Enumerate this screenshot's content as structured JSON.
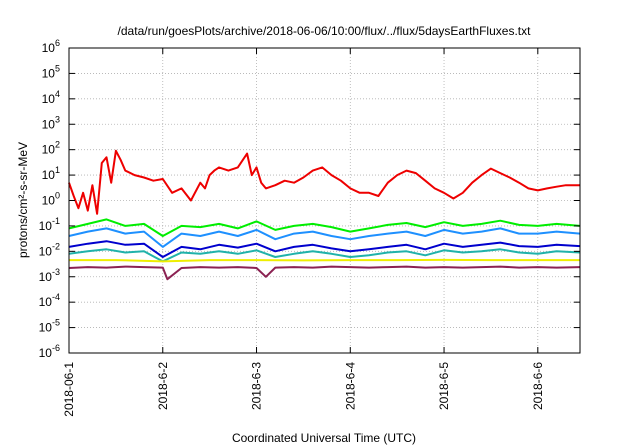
{
  "chart_data": {
    "type": "line",
    "title": "/data/run/goesPlots/archive/2018-06-06/10:00/flux/../flux/5daysEarthFluxes.txt",
    "xlabel": "Coordinated Universal Time (UTC)",
    "ylabel": "protons/cm²-s-sr-MeV",
    "y_scale": "log",
    "ylim": [
      1e-06,
      1000000.0
    ],
    "xlim": [
      0,
      5.45
    ],
    "x_origin_date": "2018-06-01",
    "x_ticks": [
      {
        "value": 0,
        "label": "2018-06-1"
      },
      {
        "value": 1,
        "label": "2018-6-2"
      },
      {
        "value": 2,
        "label": "2018-6-3"
      },
      {
        "value": 3,
        "label": "2018-6-4"
      },
      {
        "value": 4,
        "label": "2018-6-5"
      },
      {
        "value": 5,
        "label": "2018-6-6"
      }
    ],
    "y_ticks": [
      {
        "value": 1000000.0,
        "base": "10",
        "exp": "6"
      },
      {
        "value": 100000.0,
        "base": "10",
        "exp": "5"
      },
      {
        "value": 10000.0,
        "base": "10",
        "exp": "4"
      },
      {
        "value": 1000.0,
        "base": "10",
        "exp": "3"
      },
      {
        "value": 100.0,
        "base": "10",
        "exp": "2"
      },
      {
        "value": 10.0,
        "base": "10",
        "exp": "1"
      },
      {
        "value": 1.0,
        "base": "10",
        "exp": "0"
      },
      {
        "value": 0.1,
        "base": "10",
        "exp": "-1"
      },
      {
        "value": 0.01,
        "base": "10",
        "exp": "-2"
      },
      {
        "value": 0.001,
        "base": "10",
        "exp": "-3"
      },
      {
        "value": 0.0001,
        "base": "10",
        "exp": "-4"
      },
      {
        "value": 1e-05,
        "base": "10",
        "exp": "-5"
      },
      {
        "value": 1e-06,
        "base": "10",
        "exp": "-6"
      }
    ],
    "grid": true,
    "series": [
      {
        "color": "#ee0000",
        "x": [
          0,
          0.05,
          0.1,
          0.15,
          0.2,
          0.25,
          0.3,
          0.35,
          0.4,
          0.45,
          0.5,
          0.55,
          0.6,
          0.7,
          0.8,
          0.9,
          1.0,
          1.1,
          1.2,
          1.3,
          1.4,
          1.45,
          1.5,
          1.55,
          1.6,
          1.7,
          1.8,
          1.9,
          1.95,
          2.0,
          2.05,
          2.1,
          2.2,
          2.3,
          2.4,
          2.5,
          2.6,
          2.7,
          2.8,
          2.9,
          3.0,
          3.1,
          3.2,
          3.3,
          3.4,
          3.5,
          3.6,
          3.7,
          3.8,
          3.9,
          4.0,
          4.1,
          4.2,
          4.3,
          4.4,
          4.5,
          4.6,
          4.7,
          4.8,
          4.9,
          5.0,
          5.1,
          5.2,
          5.3,
          5.45
        ],
        "values": [
          5,
          1.5,
          0.5,
          2,
          0.4,
          4,
          0.3,
          30,
          50,
          5,
          90,
          40,
          15,
          10,
          8,
          6,
          7,
          2,
          3,
          1,
          5,
          3,
          10,
          15,
          20,
          15,
          20,
          70,
          10,
          20,
          5,
          3,
          4,
          6,
          5,
          8,
          15,
          20,
          10,
          6,
          3,
          2,
          2,
          1.5,
          5,
          10,
          15,
          12,
          6,
          3,
          2,
          1.2,
          2,
          5,
          10,
          18,
          12,
          8,
          5,
          3,
          2.5,
          3,
          3.5,
          4,
          4
        ]
      },
      {
        "color": "#00ee00",
        "x": [
          0,
          0.2,
          0.4,
          0.6,
          0.8,
          1.0,
          1.2,
          1.4,
          1.6,
          1.8,
          2.0,
          2.2,
          2.4,
          2.6,
          2.8,
          3.0,
          3.2,
          3.4,
          3.6,
          3.8,
          4.0,
          4.2,
          4.4,
          4.6,
          4.8,
          5.0,
          5.2,
          5.45
        ],
        "values": [
          0.08,
          0.12,
          0.18,
          0.1,
          0.12,
          0.04,
          0.1,
          0.09,
          0.12,
          0.08,
          0.15,
          0.07,
          0.1,
          0.12,
          0.09,
          0.06,
          0.08,
          0.11,
          0.13,
          0.09,
          0.14,
          0.1,
          0.12,
          0.16,
          0.11,
          0.1,
          0.12,
          0.1
        ]
      },
      {
        "color": "#1e90ff",
        "x": [
          0,
          0.2,
          0.4,
          0.6,
          0.8,
          1.0,
          1.2,
          1.4,
          1.6,
          1.8,
          2.0,
          2.2,
          2.4,
          2.6,
          2.8,
          3.0,
          3.2,
          3.4,
          3.6,
          3.8,
          4.0,
          4.2,
          4.4,
          4.6,
          4.8,
          5.0,
          5.2,
          5.45
        ],
        "values": [
          0.04,
          0.06,
          0.08,
          0.05,
          0.06,
          0.015,
          0.05,
          0.04,
          0.06,
          0.04,
          0.07,
          0.03,
          0.05,
          0.06,
          0.04,
          0.03,
          0.04,
          0.05,
          0.06,
          0.04,
          0.07,
          0.05,
          0.06,
          0.08,
          0.05,
          0.05,
          0.06,
          0.05
        ]
      },
      {
        "color": "#0000cd",
        "x": [
          0,
          0.2,
          0.4,
          0.6,
          0.8,
          1.0,
          1.2,
          1.4,
          1.6,
          1.8,
          2.0,
          2.2,
          2.4,
          2.6,
          2.8,
          3.0,
          3.2,
          3.4,
          3.6,
          3.8,
          4.0,
          4.2,
          4.4,
          4.6,
          4.8,
          5.0,
          5.2,
          5.45
        ],
        "values": [
          0.015,
          0.02,
          0.025,
          0.018,
          0.02,
          0.006,
          0.015,
          0.012,
          0.018,
          0.014,
          0.02,
          0.01,
          0.015,
          0.018,
          0.013,
          0.01,
          0.012,
          0.015,
          0.018,
          0.012,
          0.02,
          0.015,
          0.018,
          0.022,
          0.016,
          0.015,
          0.018,
          0.016
        ]
      },
      {
        "color": "#20b2aa",
        "x": [
          0,
          0.2,
          0.4,
          0.6,
          0.8,
          1.0,
          1.2,
          1.4,
          1.6,
          1.8,
          2.0,
          2.2,
          2.4,
          2.6,
          2.8,
          3.0,
          3.2,
          3.4,
          3.6,
          3.8,
          4.0,
          4.2,
          4.4,
          4.6,
          4.8,
          5.0,
          5.2,
          5.45
        ],
        "values": [
          0.008,
          0.01,
          0.012,
          0.009,
          0.01,
          0.004,
          0.009,
          0.008,
          0.01,
          0.008,
          0.011,
          0.006,
          0.008,
          0.01,
          0.008,
          0.006,
          0.007,
          0.009,
          0.01,
          0.007,
          0.011,
          0.009,
          0.01,
          0.012,
          0.009,
          0.008,
          0.01,
          0.009
        ]
      },
      {
        "color": "#eeee00",
        "x": [
          0,
          0.5,
          1.0,
          1.5,
          2.0,
          2.5,
          3.0,
          3.5,
          4.0,
          4.5,
          5.0,
          5.45
        ],
        "values": [
          0.0045,
          0.0045,
          0.004,
          0.0045,
          0.0045,
          0.0044,
          0.0045,
          0.0045,
          0.0046,
          0.0045,
          0.0045,
          0.0045
        ]
      },
      {
        "color": "#8b2252",
        "x": [
          0,
          0.2,
          0.4,
          0.6,
          0.8,
          1.0,
          1.05,
          1.2,
          1.4,
          1.6,
          1.8,
          2.0,
          2.1,
          2.2,
          2.4,
          2.6,
          2.8,
          3.0,
          3.2,
          3.4,
          3.6,
          3.8,
          4.0,
          4.2,
          4.4,
          4.6,
          4.8,
          5.0,
          5.2,
          5.45
        ],
        "values": [
          0.0022,
          0.0024,
          0.0023,
          0.0025,
          0.0024,
          0.0023,
          0.0008,
          0.0022,
          0.0024,
          0.0023,
          0.0024,
          0.0022,
          0.001,
          0.0023,
          0.0024,
          0.0023,
          0.0025,
          0.0024,
          0.0023,
          0.0024,
          0.0025,
          0.0023,
          0.0024,
          0.0023,
          0.0024,
          0.0025,
          0.0023,
          0.0024,
          0.0023,
          0.0024
        ]
      }
    ]
  }
}
